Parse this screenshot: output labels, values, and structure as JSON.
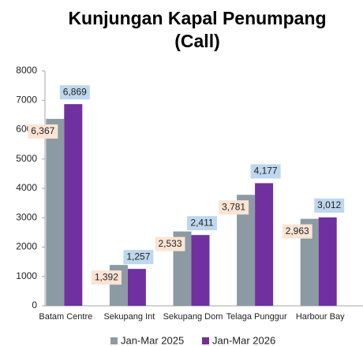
{
  "chart_data": {
    "type": "bar",
    "title": [
      "Kunjungan Kapal Penumpang",
      "(Call)"
    ],
    "categories": [
      "Batam Centre",
      "Sekupang Int",
      "Sekupang Dom",
      "Telaga Punggur",
      "Harbour Bay"
    ],
    "series": [
      {
        "name": "Jan-Mar 2025",
        "color": "#8c9ba3",
        "label_bg": "#fce4d4",
        "values": [
          6367,
          1392,
          2533,
          3781,
          2963
        ],
        "value_labels": [
          "6,367",
          "1,392",
          "2,533",
          "3,781",
          "2,963"
        ]
      },
      {
        "name": "Jan-Mar 2026",
        "color": "#7030a0",
        "label_bg": "#bdd7ee",
        "values": [
          6869,
          1257,
          2411,
          4177,
          3012
        ],
        "value_labels": [
          "6,869",
          "1,257",
          "2,411",
          "4,177",
          "3,012"
        ]
      }
    ],
    "ylim": [
      0,
      8000
    ],
    "yticks": [
      0,
      1000,
      2000,
      3000,
      4000,
      5000,
      6000,
      7000,
      8000
    ],
    "grid": false,
    "legend": "bottom"
  }
}
